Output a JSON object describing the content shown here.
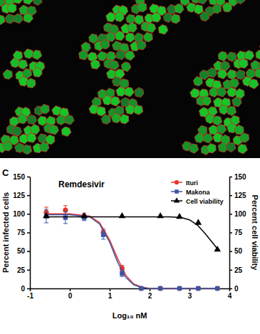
{
  "chart_data": {
    "type": "scatter",
    "title": "Remdesivir",
    "annotations": [
      "C"
    ],
    "x_label": "Log₁₀ nM",
    "y_label": "Percent infected cells",
    "y2_label": "Percent cell viability",
    "xlim": [
      -1,
      4
    ],
    "xticks": [
      -1,
      0,
      1,
      2,
      3,
      4
    ],
    "ylim": [
      0,
      150
    ],
    "yticks": [
      0,
      25,
      50,
      75,
      100,
      125,
      150
    ],
    "y2lim": [
      0,
      150
    ],
    "y2ticks": [
      0,
      25,
      50,
      75,
      100,
      125,
      150
    ],
    "legend": "top-right",
    "grid": false,
    "series": [
      {
        "name": "Ituri",
        "color": "#e8322b",
        "marker": "circle",
        "line_style": "solid",
        "x": [
          -0.59,
          -0.11,
          0.36,
          0.84,
          1.31,
          1.79,
          2.27,
          2.75,
          3.22,
          3.7
        ],
        "values": [
          102,
          105,
          97,
          75,
          27,
          0,
          0,
          0,
          0,
          0
        ],
        "errors": [
          7,
          6,
          4,
          5,
          4,
          1,
          0,
          0,
          0,
          0
        ],
        "fit_x": [
          -0.6,
          0,
          0.5,
          0.75,
          1.0,
          1.2,
          1.4,
          1.6,
          1.8,
          2.0,
          3.7
        ],
        "fit_values": [
          100,
          100,
          97,
          88,
          65,
          40,
          18,
          6,
          2,
          0,
          0
        ]
      },
      {
        "name": "Makona",
        "color": "#3a55a4",
        "marker": "square",
        "line_style": "solid",
        "x": [
          -0.59,
          -0.11,
          0.36,
          0.84,
          1.31,
          1.79,
          2.27,
          2.75,
          3.22,
          3.7
        ],
        "values": [
          97,
          95,
          95,
          72,
          20,
          0,
          0,
          0,
          0,
          0
        ],
        "errors": [
          9,
          8,
          4,
          6,
          4,
          1,
          0,
          0,
          0,
          0
        ],
        "fit_x": [
          -0.6,
          0,
          0.5,
          0.75,
          1.0,
          1.2,
          1.4,
          1.6,
          1.8,
          2.0,
          3.7
        ],
        "fit_values": [
          99,
          99,
          96,
          86,
          62,
          35,
          15,
          5,
          1,
          0,
          0
        ]
      },
      {
        "name": "Cell viability",
        "color": "#000000",
        "marker": "triangle",
        "line_style": "solid",
        "axis": "y2",
        "x": [
          -0.59,
          0.36,
          1.31,
          2.27,
          2.75,
          3.22,
          3.7
        ],
        "values": [
          97,
          97,
          97,
          97,
          96,
          88,
          52
        ],
        "errors": [
          0,
          0,
          0,
          0,
          0,
          0,
          0
        ],
        "fit_x": [
          -0.6,
          2.5,
          2.8,
          3.0,
          3.2,
          3.4,
          3.6,
          3.7
        ],
        "fit_values": [
          96,
          96,
          95,
          92,
          85,
          73,
          60,
          53
        ]
      }
    ]
  }
}
